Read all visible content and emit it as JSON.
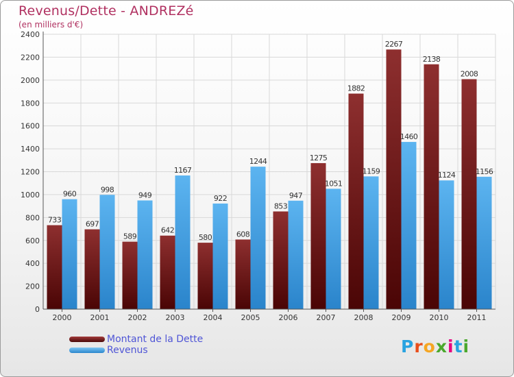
{
  "title": "Revenus/Dette - ANDREZé",
  "subtitle": "(en milliers d'€)",
  "legend": {
    "debt_label": "Montant de la Dette",
    "revenue_label": "Revenus"
  },
  "logo": {
    "letters": [
      "P",
      "r",
      "o",
      "x",
      "i",
      "t",
      "i"
    ],
    "colors": [
      "#29a3e0",
      "#e94e1b",
      "#f5a623",
      "#4aa82c",
      "#e6007e",
      "#29a3e0",
      "#4aa82c"
    ]
  },
  "colors": {
    "debt": "#7a1d1d",
    "revenue": "#3aa0e6",
    "title": "#b03060",
    "legend_text": "#4f55d6"
  },
  "chart_data": {
    "type": "bar",
    "categories": [
      "2000",
      "2001",
      "2002",
      "2003",
      "2004",
      "2005",
      "2006",
      "2007",
      "2008",
      "2009",
      "2010",
      "2011"
    ],
    "series": [
      {
        "name": "Montant de la Dette",
        "values": [
          733,
          697,
          589,
          642,
          580,
          608,
          853,
          1275,
          1882,
          2267,
          2138,
          2008
        ]
      },
      {
        "name": "Revenus",
        "values": [
          960,
          998,
          949,
          1167,
          922,
          1244,
          947,
          1051,
          1159,
          1460,
          1124,
          1156
        ]
      }
    ],
    "ylim": [
      0,
      2400
    ],
    "yticks": [
      0,
      200,
      400,
      600,
      800,
      1000,
      1200,
      1400,
      1600,
      1800,
      2000,
      2200,
      2400
    ],
    "grid": true,
    "legend_position": "bottom-left"
  }
}
